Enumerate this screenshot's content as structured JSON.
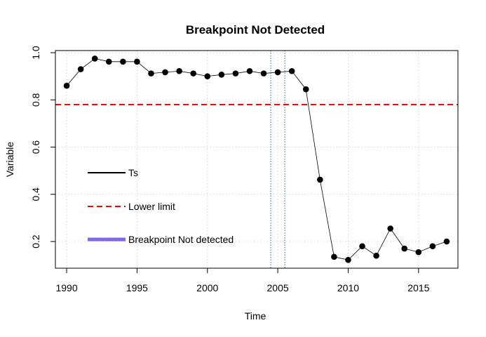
{
  "chart_data": {
    "type": "line",
    "title": "Breakpoint Not Detected",
    "xlabel": "Time",
    "ylabel": "Variable",
    "xlim": [
      1989.2,
      2017.8
    ],
    "ylim": [
      0.087,
      1.009
    ],
    "x_ticks": [
      1990,
      1995,
      2000,
      2005,
      2010,
      2015
    ],
    "x_tick_labels": [
      "1990",
      "1995",
      "2000",
      "2005",
      "2010",
      "2015"
    ],
    "y_ticks": [
      0.2,
      0.4,
      0.6,
      0.8,
      1.0
    ],
    "y_tick_labels": [
      "0.2",
      "0.4",
      "0.6",
      "0.8",
      "1.0"
    ],
    "grid": true,
    "series": [
      {
        "name": "Ts",
        "color": "#000000",
        "x": [
          1990,
          1991,
          1992,
          1993,
          1994,
          1995,
          1996,
          1997,
          1998,
          1999,
          2000,
          2001,
          2002,
          2003,
          2004,
          2005,
          2006,
          2007,
          2008,
          2009,
          2010,
          2011,
          2012,
          2013,
          2014,
          2015,
          2016,
          2017
        ],
        "values": [
          0.86,
          0.93,
          0.975,
          0.962,
          0.962,
          0.962,
          0.912,
          0.917,
          0.922,
          0.912,
          0.9,
          0.907,
          0.912,
          0.922,
          0.912,
          0.917,
          0.922,
          0.845,
          0.462,
          0.135,
          0.122,
          0.18,
          0.14,
          0.255,
          0.17,
          0.155,
          0.18,
          0.2
        ]
      }
    ],
    "reference_lines": [
      {
        "name": "Lower limit",
        "orientation": "horizontal",
        "value": 0.78,
        "color": "#ff0000",
        "style": "dashed"
      },
      {
        "orientation": "vertical",
        "value": 2004.5,
        "color": "#1f6f8b",
        "style": "dotted"
      },
      {
        "orientation": "vertical",
        "value": 2005.5,
        "color": "#1f6f8b",
        "style": "dotted"
      }
    ],
    "legend": {
      "placement": "center-left",
      "entries": [
        {
          "label": "Ts",
          "color": "#000000",
          "style": "solid"
        },
        {
          "label": "Lower limit",
          "color": "#ff0000",
          "style": "dashed"
        },
        {
          "label": "Breakpoint Not detected",
          "color": "#7b68ee",
          "style": "thick-solid"
        }
      ]
    }
  }
}
